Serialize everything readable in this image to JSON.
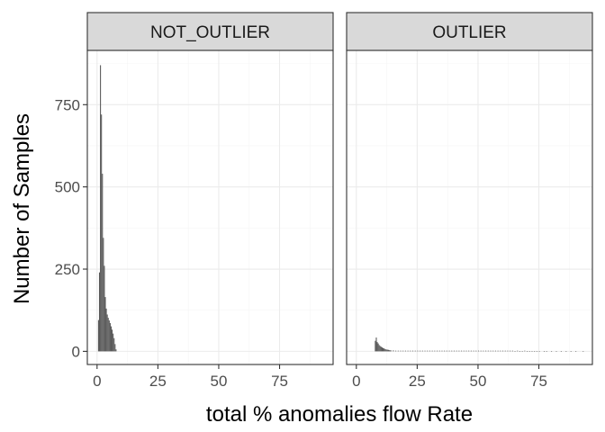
{
  "chart_data": {
    "type": "bar",
    "title": "",
    "xlabel": "total %  anomalies flow Rate",
    "ylabel": "Number of Samples",
    "xlim": [
      -4,
      97
    ],
    "ylim": [
      -40,
      915
    ],
    "x_ticks": [
      0,
      25,
      50,
      75
    ],
    "x_tick_labels": [
      "0",
      "25",
      "50",
      "75"
    ],
    "y_ticks": [
      0,
      250,
      500,
      750
    ],
    "y_tick_labels": [
      "0",
      "250",
      "500",
      "750"
    ],
    "grid": true,
    "bin_width": 0.4,
    "facets": [
      {
        "label": "NOT_OUTLIER",
        "bins": [
          [
            0.4,
            95
          ],
          [
            0.8,
            240
          ],
          [
            1.2,
            870
          ],
          [
            1.6,
            720
          ],
          [
            2.0,
            540
          ],
          [
            2.4,
            345
          ],
          [
            2.8,
            260
          ],
          [
            3.2,
            165
          ],
          [
            3.6,
            130
          ],
          [
            4.0,
            112
          ],
          [
            4.4,
            102
          ],
          [
            4.8,
            94
          ],
          [
            5.2,
            86
          ],
          [
            5.6,
            76
          ],
          [
            6.0,
            66
          ],
          [
            6.4,
            54
          ],
          [
            6.8,
            40
          ],
          [
            7.2,
            22
          ],
          [
            7.6,
            6
          ]
        ]
      },
      {
        "label": "OUTLIER",
        "bins": [
          [
            7.6,
            32
          ],
          [
            8.0,
            42
          ],
          [
            8.4,
            28
          ],
          [
            8.8,
            24
          ],
          [
            9.2,
            19
          ],
          [
            9.6,
            16
          ],
          [
            10.0,
            14
          ],
          [
            10.4,
            12
          ],
          [
            10.8,
            10
          ],
          [
            11.2,
            9
          ],
          [
            11.6,
            7
          ],
          [
            12.0,
            6
          ],
          [
            12.4,
            5
          ],
          [
            12.8,
            5
          ],
          [
            13.2,
            4
          ],
          [
            13.6,
            3
          ],
          [
            14.0,
            3
          ],
          [
            15,
            3
          ],
          [
            16,
            2
          ],
          [
            17,
            2
          ],
          [
            18,
            2
          ],
          [
            19,
            2
          ],
          [
            20,
            2
          ],
          [
            21,
            2
          ],
          [
            22,
            2
          ],
          [
            23,
            2
          ],
          [
            24,
            2
          ],
          [
            25,
            2
          ],
          [
            26,
            2
          ],
          [
            27,
            2
          ],
          [
            28,
            2
          ],
          [
            29,
            2
          ],
          [
            30,
            2
          ],
          [
            31,
            2
          ],
          [
            32,
            2
          ],
          [
            33,
            2
          ],
          [
            34,
            2
          ],
          [
            35,
            2
          ],
          [
            36,
            2
          ],
          [
            37,
            2
          ],
          [
            38,
            2
          ],
          [
            39,
            2
          ],
          [
            40,
            2
          ],
          [
            41,
            2
          ],
          [
            42,
            2
          ],
          [
            43,
            2
          ],
          [
            44,
            2
          ],
          [
            45,
            2
          ],
          [
            46,
            2
          ],
          [
            47,
            2
          ],
          [
            48,
            2
          ],
          [
            49,
            2
          ],
          [
            50,
            2
          ],
          [
            51,
            2
          ],
          [
            52,
            2
          ],
          [
            53,
            2
          ],
          [
            54,
            2
          ],
          [
            55,
            2
          ],
          [
            56,
            2
          ],
          [
            57,
            2
          ],
          [
            58,
            2
          ],
          [
            59,
            2
          ],
          [
            60,
            2
          ],
          [
            61,
            2
          ],
          [
            62,
            2
          ],
          [
            63,
            2
          ],
          [
            64,
            2
          ],
          [
            65,
            1
          ],
          [
            66,
            2
          ],
          [
            67,
            1
          ],
          [
            68,
            1
          ],
          [
            69,
            2
          ],
          [
            70,
            1
          ],
          [
            71,
            1
          ],
          [
            72,
            1
          ],
          [
            73,
            1
          ],
          [
            74,
            1
          ],
          [
            75,
            1
          ],
          [
            77,
            1
          ],
          [
            78,
            1
          ],
          [
            80,
            1
          ],
          [
            82,
            1
          ],
          [
            84,
            1
          ],
          [
            86,
            1
          ],
          [
            88,
            1
          ],
          [
            90,
            1
          ],
          [
            93,
            1
          ]
        ]
      }
    ],
    "colors": {
      "bar": "#595959",
      "strip_fill": "#d9d9d9",
      "panel_border": "#333333",
      "grid_major": "#ebebeb",
      "grid_minor": "#f5f5f5"
    }
  }
}
